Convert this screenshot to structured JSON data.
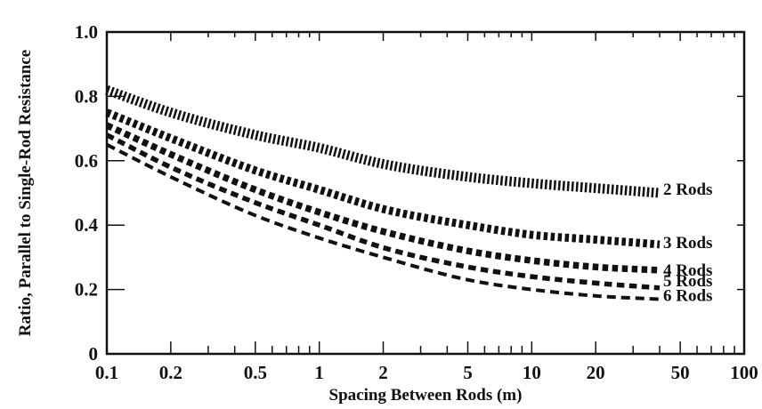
{
  "chart_data": {
    "type": "line",
    "xscale": "log",
    "xlim": [
      0.1,
      100
    ],
    "ylim": [
      0,
      1.0
    ],
    "xlabel": "Spacing Between Rods (m)",
    "ylabel": "Ratio, Parallel to Single-Rod Resistance",
    "xticks": [
      {
        "value": 0.1,
        "label": "0.1"
      },
      {
        "value": 0.2,
        "label": "0.2"
      },
      {
        "value": 0.5,
        "label": "0.5"
      },
      {
        "value": 1,
        "label": "1"
      },
      {
        "value": 2,
        "label": "2"
      },
      {
        "value": 5,
        "label": "5"
      },
      {
        "value": 10,
        "label": "10"
      },
      {
        "value": 20,
        "label": "20"
      },
      {
        "value": 50,
        "label": "50"
      },
      {
        "value": 100,
        "label": "100"
      }
    ],
    "minor_xticks": [
      0.3,
      0.4,
      0.6,
      0.7,
      0.8,
      0.9,
      3,
      4,
      6,
      7,
      8,
      9,
      30,
      40,
      60,
      70,
      80,
      90
    ],
    "yticks": [
      {
        "value": 0,
        "label": "0"
      },
      {
        "value": 0.2,
        "label": "0.2"
      },
      {
        "value": 0.4,
        "label": "0.4"
      },
      {
        "value": 0.6,
        "label": "0.6"
      },
      {
        "value": 0.8,
        "label": "0.8"
      },
      {
        "value": 1.0,
        "label": "1.0"
      }
    ],
    "grid": false,
    "legend": "none",
    "x": [
      0.1,
      0.2,
      0.5,
      1,
      2,
      5,
      10,
      20,
      40
    ],
    "series": [
      {
        "name": "2 Rods",
        "values": [
          0.82,
          0.75,
          0.68,
          0.64,
          0.59,
          0.55,
          0.53,
          0.515,
          0.5
        ]
      },
      {
        "name": "3 Rods",
        "values": [
          0.75,
          0.67,
          0.57,
          0.51,
          0.45,
          0.4,
          0.37,
          0.355,
          0.34
        ]
      },
      {
        "name": "4 Rods",
        "values": [
          0.71,
          0.62,
          0.51,
          0.44,
          0.38,
          0.32,
          0.29,
          0.27,
          0.26
        ]
      },
      {
        "name": "5 Rods",
        "values": [
          0.68,
          0.58,
          0.47,
          0.4,
          0.33,
          0.27,
          0.24,
          0.22,
          0.205
        ]
      },
      {
        "name": "6 Rods",
        "values": [
          0.65,
          0.55,
          0.43,
          0.36,
          0.3,
          0.23,
          0.2,
          0.18,
          0.17
        ]
      }
    ]
  }
}
